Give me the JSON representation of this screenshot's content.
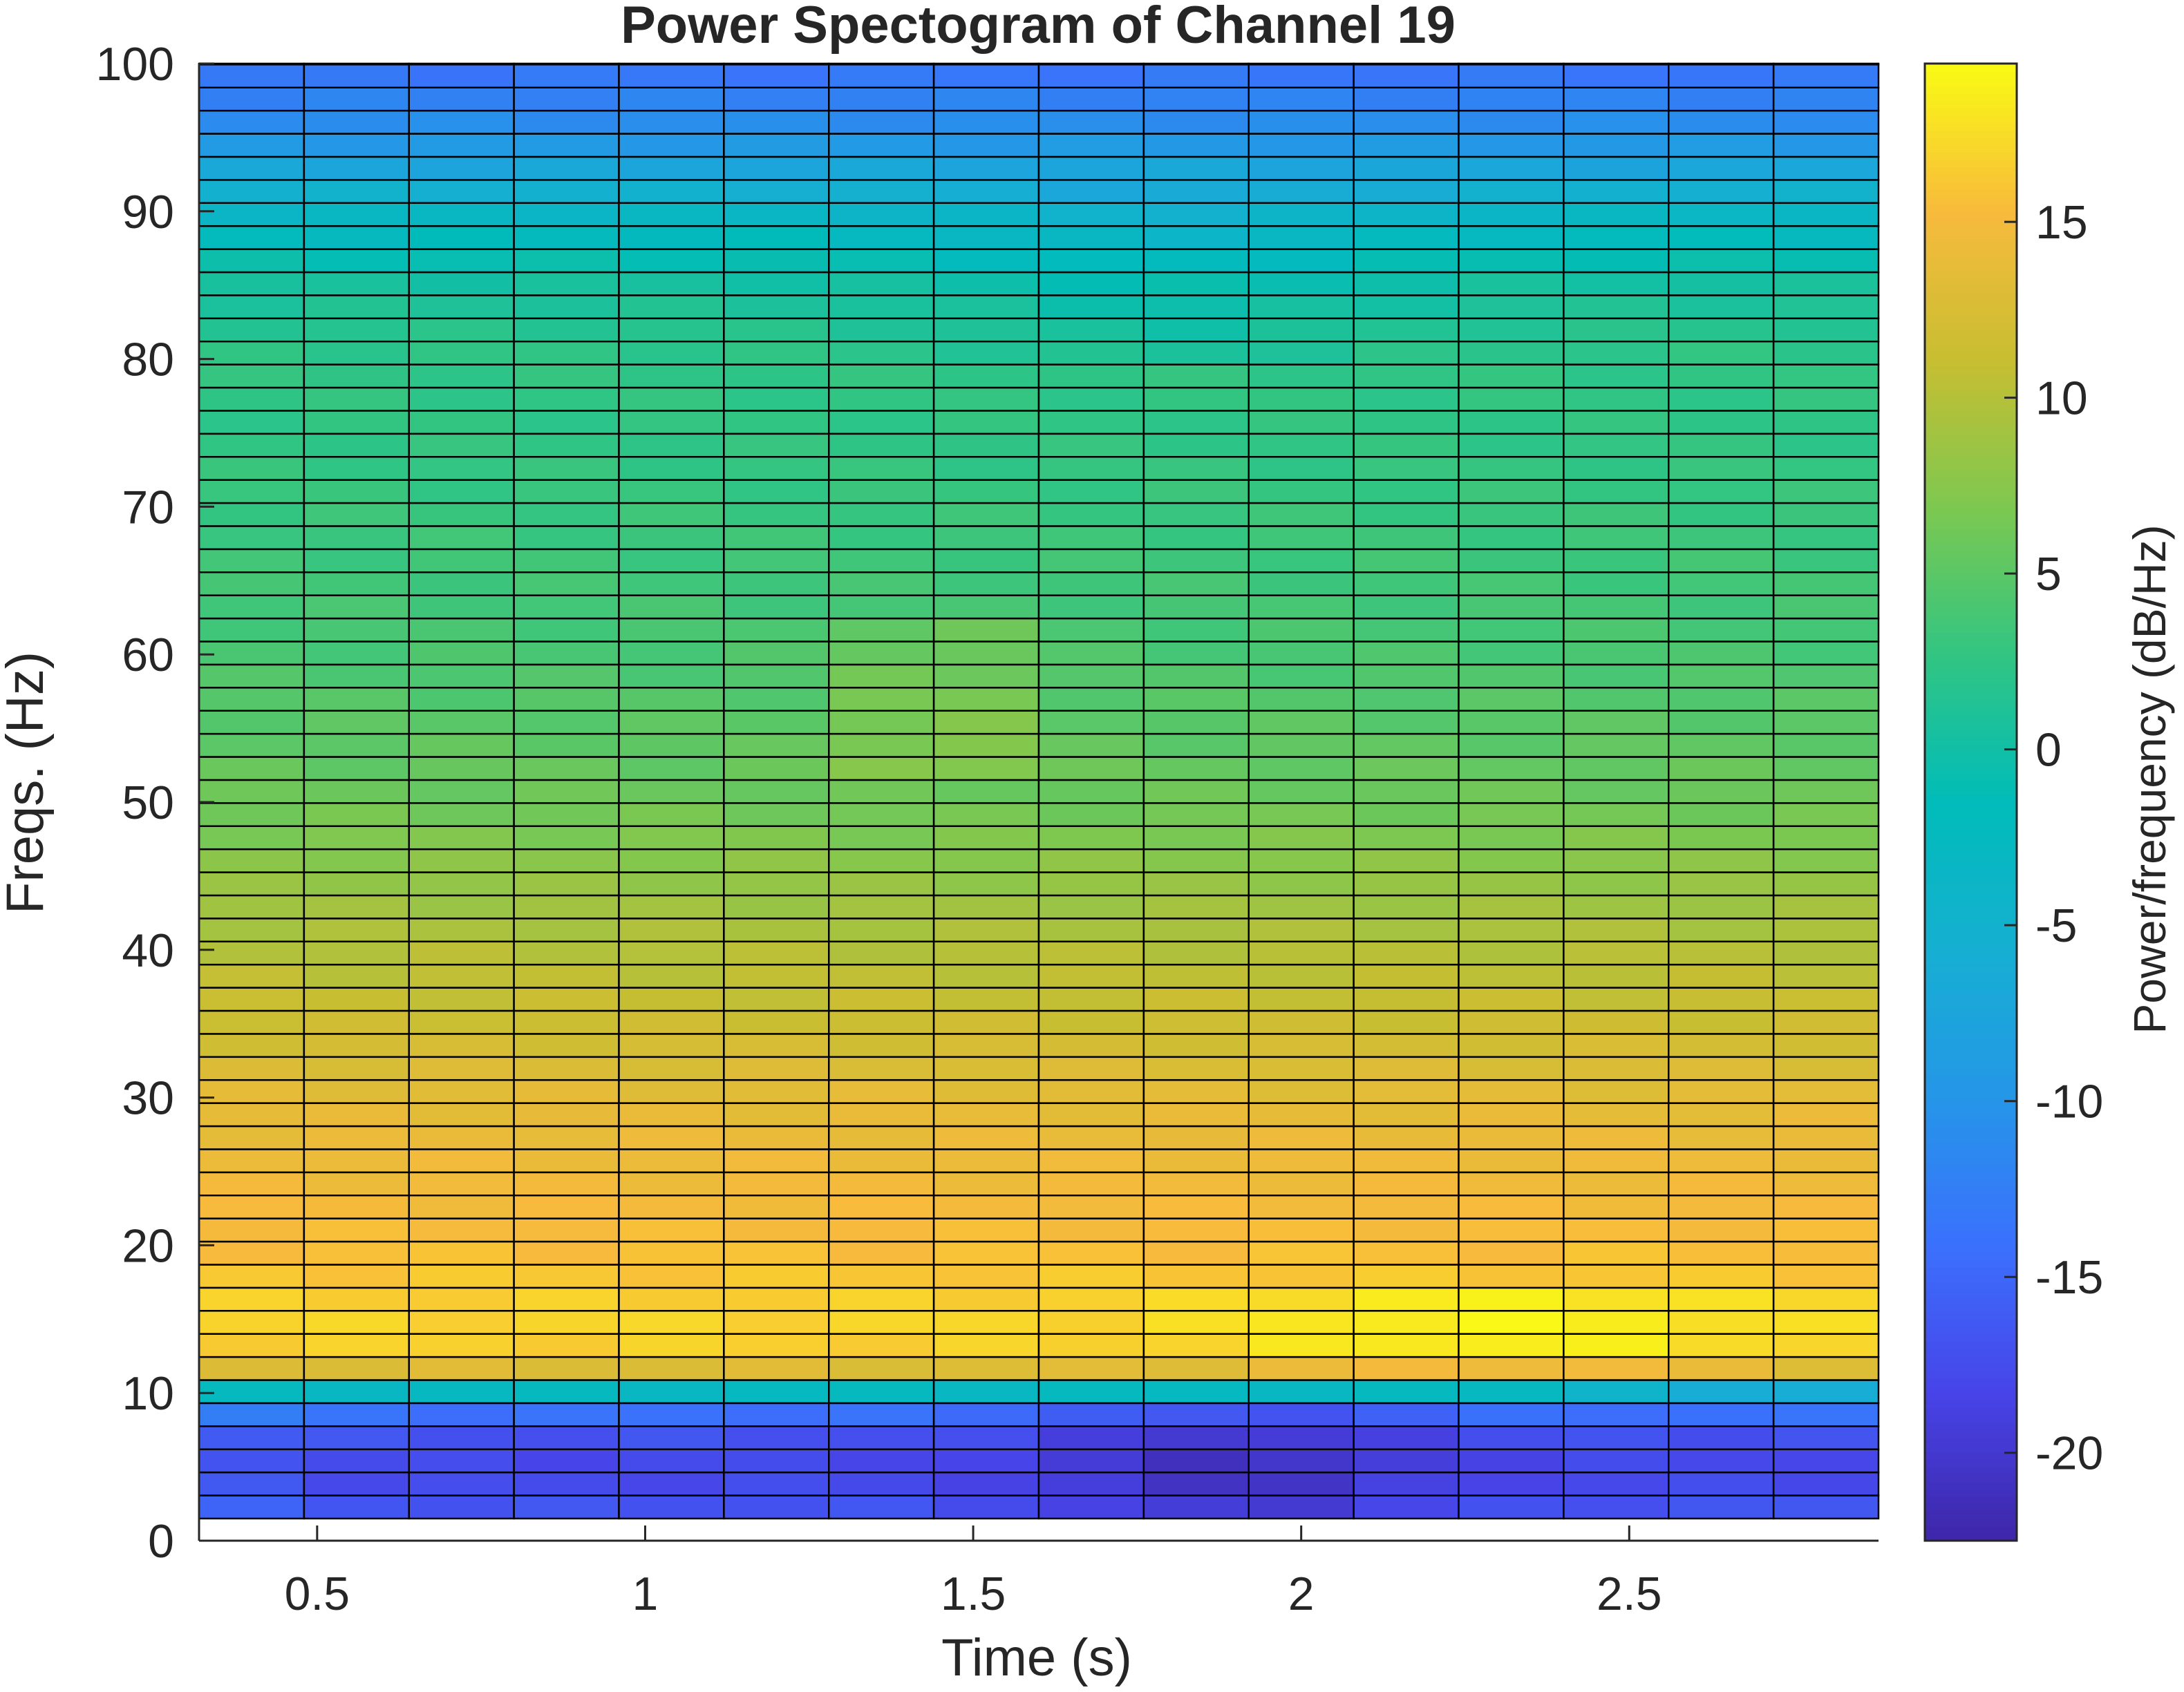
{
  "chart_data": {
    "type": "heatmap",
    "title": "Power Spectogram of Channel 19",
    "xlabel": "Time (s)",
    "ylabel": "Freqs. (Hz)",
    "colorbar_label": "Power/frequency (dB/Hz)",
    "colormap": "parula",
    "xlim": [
      0.32,
      2.88
    ],
    "ylim": [
      0,
      100
    ],
    "clim": [
      -22.5,
      19.5
    ],
    "xticks": [
      0.5,
      1,
      1.5,
      2,
      2.5
    ],
    "xtick_labels": [
      "0.5",
      "1",
      "1.5",
      "2",
      "2.5"
    ],
    "yticks": [
      0,
      10,
      20,
      30,
      40,
      50,
      60,
      70,
      80,
      90,
      100
    ],
    "ytick_labels": [
      "0",
      "10",
      "20",
      "30",
      "40",
      "50",
      "60",
      "70",
      "80",
      "90",
      "100"
    ],
    "cbticks": [
      -20,
      -15,
      -10,
      -5,
      0,
      5,
      10,
      15
    ],
    "cbtick_labels": [
      "-20",
      "-15",
      "-10",
      "-5",
      "0",
      "5",
      "10",
      "15"
    ],
    "time_bins": [
      0.32,
      0.48,
      0.64,
      0.8,
      0.96,
      1.12,
      1.28,
      1.44,
      1.6,
      1.76,
      1.92,
      2.08,
      2.24,
      2.4,
      2.56,
      2.72,
      2.88
    ],
    "freq_bins": [
      1.5,
      100
    ],
    "freq_resolution_hz": 1.5625,
    "power_profile_db": {
      "freqs": [
        1.5,
        3,
        5,
        7,
        9,
        10.5,
        12,
        15,
        20,
        25,
        30,
        35,
        40,
        45,
        50,
        55,
        60,
        65,
        70,
        75,
        80,
        85,
        90,
        95,
        100
      ],
      "values": [
        -16,
        -17.5,
        -18,
        -17,
        -13,
        1,
        16.5,
        17,
        15.5,
        14.5,
        13.5,
        11.5,
        10,
        8,
        6,
        5,
        4,
        3.5,
        3,
        2.5,
        2.5,
        0.5,
        -3.5,
        -10,
        -14
      ]
    },
    "grid": false,
    "colorbar": true
  }
}
